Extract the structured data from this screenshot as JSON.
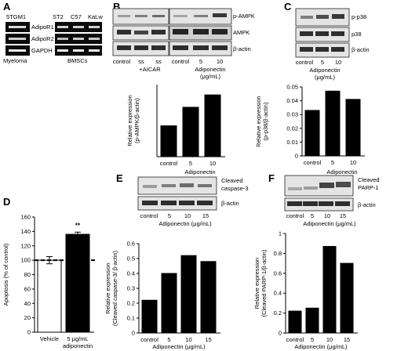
{
  "panels": {
    "A": {
      "label": "A",
      "lanes": [
        "5TGM1",
        "ST2",
        "C57",
        "KaLw"
      ],
      "blots": [
        "AdipoR1",
        "AdipoR2",
        "GAPDH"
      ],
      "groups": [
        "Myeloma",
        "BMSCs"
      ]
    },
    "B": {
      "label": "B",
      "blots": [
        "p-AMPK",
        "AMPK",
        "β-actin"
      ],
      "lanes": [
        "control",
        "ss",
        "ss",
        "control",
        "5",
        "10"
      ],
      "aicar": "+AICAR",
      "xgroup": [
        "Adiponectin",
        "(μg/mL)"
      ]
    },
    "C": {
      "label": "C",
      "blots": [
        "p-p38",
        "p38",
        "β-actin"
      ],
      "lanes": [
        "control",
        "5",
        "10"
      ],
      "xgroup": [
        "Adiponectin",
        "(μg/mL)"
      ]
    },
    "D": {
      "label": "D",
      "significance": "**"
    },
    "E": {
      "label": "E",
      "blots": [
        [
          "Cleaved",
          "caspase-3"
        ],
        [
          "β-actin"
        ]
      ],
      "lanes": [
        "control",
        "5",
        "10",
        "15"
      ],
      "xgroup": "Adiponectin (μg/mL)"
    },
    "F": {
      "label": "F",
      "blots": [
        [
          "Cleaved",
          "PARP-1"
        ],
        [
          "β-actin"
        ]
      ],
      "lanes": [
        "control",
        "5",
        "10",
        "15"
      ],
      "xgroup": "Adiponectin (μg/mL)"
    }
  },
  "chart_data": [
    {
      "id": "B",
      "type": "bar",
      "categories": [
        "control",
        "5",
        "10"
      ],
      "values": [
        0.015,
        0.024,
        0.03
      ],
      "ylabel": [
        "Relative expression",
        "(p-AMPK/β-actin)"
      ],
      "xgroup": [
        "Adiponectin",
        "(μg/mL)"
      ],
      "ylim": [
        0,
        0.035
      ],
      "yticks": [],
      "color": "#000000"
    },
    {
      "id": "C",
      "type": "bar",
      "categories": [
        "control",
        "5",
        "10"
      ],
      "values": [
        0.033,
        0.047,
        0.041
      ],
      "ylabel": [
        "Relative expression",
        "(p-p38/β-actin)"
      ],
      "xgroup": [
        "Adiponectin",
        "(μg/mL)"
      ],
      "ylim": [
        0,
        0.05
      ],
      "yticks": [
        "0",
        "0.01",
        "0.02",
        "0.03",
        "0.04",
        "0.05"
      ],
      "color": "#000000"
    },
    {
      "id": "D",
      "type": "bar",
      "categories": [
        "Vehicle",
        "5 μg/mL adiponectin"
      ],
      "category_lines": [
        [
          "Vehicle"
        ],
        [
          "5 μg/mL",
          "adiponectin"
        ]
      ],
      "values": [
        100,
        136
      ],
      "errors": [
        5,
        3
      ],
      "fills": [
        "#ffffff",
        "#000000"
      ],
      "ylabel": [
        "Apoptosis (% of control)"
      ],
      "ylim": [
        0,
        160
      ],
      "yticks": [
        "0",
        "20",
        "40",
        "60",
        "80",
        "100",
        "120",
        "140",
        "160"
      ],
      "reference_line": 100
    },
    {
      "id": "E",
      "type": "bar",
      "categories": [
        "control",
        "5",
        "10",
        "15"
      ],
      "values": [
        0.22,
        0.4,
        0.52,
        0.48
      ],
      "ylabel": [
        "Relative expression",
        "(Cleaved caspase-3/ β-actin)"
      ],
      "xgroup": [
        "Adiponectin (μg/mL)"
      ],
      "ylim": [
        0,
        0.6
      ],
      "yticks": [
        "0",
        "0.1",
        "0.2",
        "0.3",
        "0.4",
        "0.5",
        "0.6"
      ],
      "color": "#000000"
    },
    {
      "id": "F",
      "type": "bar",
      "categories": [
        "control",
        "5",
        "10",
        "15"
      ],
      "values": [
        0.22,
        0.25,
        0.87,
        0.7
      ],
      "ylabel": [
        "Relative expression",
        "(Cleaved PARP-1/β-actin)"
      ],
      "xgroup": [
        "Adiponectin (μg/mL)"
      ],
      "ylim": [
        0,
        1
      ],
      "yticks": [
        "0",
        "0.2",
        "0.4",
        "0.6",
        "0.8",
        "1"
      ],
      "color": "#000000"
    }
  ]
}
